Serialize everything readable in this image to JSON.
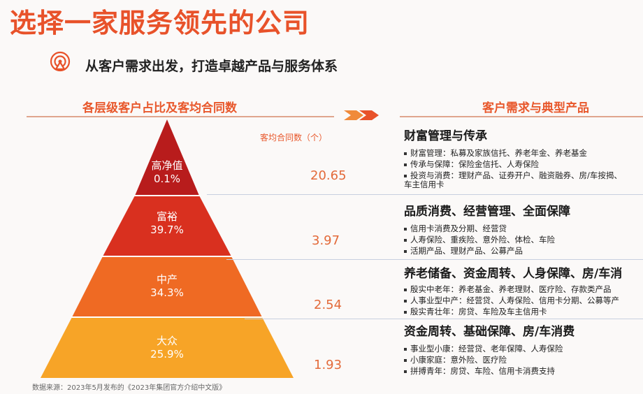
{
  "title": "选择一家服务领先的公司",
  "subtitle": "从客户需求出发，打造卓越产品与服务体系",
  "icons": {
    "subtitle_icon": "target-icon",
    "arrows": "double-chevron-right-icon"
  },
  "colors": {
    "accent": "#e8522a",
    "tier1": "#b81c1c",
    "tier2": "#d9301f",
    "tier3": "#ef6a23",
    "tier4": "#f7a427"
  },
  "left_header": "各层级客户占比及客均合同数",
  "right_header": "客户需求与典型产品",
  "value_header": "客均合同数（个）",
  "tiers": [
    {
      "name": "高净值",
      "pct": "0.1%",
      "value": "20.65"
    },
    {
      "name": "富裕",
      "pct": "39.7%",
      "value": "3.97"
    },
    {
      "name": "中产",
      "pct": "34.3%",
      "value": "2.54"
    },
    {
      "name": "大众",
      "pct": "25.9%",
      "value": "1.93"
    }
  ],
  "blocks": [
    {
      "title": "财富管理与传承",
      "items": [
        "财富管理：私募及家族信托、养老年金、养老基金",
        "传承与保障：保险金信托、人寿保险",
        "投资与消费：理财产品、证券开户、融资融券、房/车按揭、"
      ],
      "continuation": "车主信用卡"
    },
    {
      "title": "品质消费、经营管理、全面保障",
      "items": [
        "信用卡消费及分期、经营贷",
        "人寿保险、重疾险、意外险、体检、车险",
        "活期产品、理财产品、公募产品"
      ]
    },
    {
      "title": "养老储备、资金周转、人身保障、房/车消",
      "items": [
        "殷实中老年：养老基金、养老理财、医疗险、存款类产品",
        "人事业型中产：经营贷、人寿保险、信用卡分期、公募等产",
        "殷实青壮年：房贷、车险及车主信用卡"
      ]
    },
    {
      "title": "资金周转、基础保障、房/车消费",
      "items": [
        "事业型小康：经营贷、老年保障、人寿保险",
        "小康家庭：意外险、医疗险",
        "拼搏青年：房贷、车险、信用卡消费支持"
      ]
    }
  ],
  "source": "数据来源：2023年5月发布的《2023年集团官方介绍中文版》"
}
